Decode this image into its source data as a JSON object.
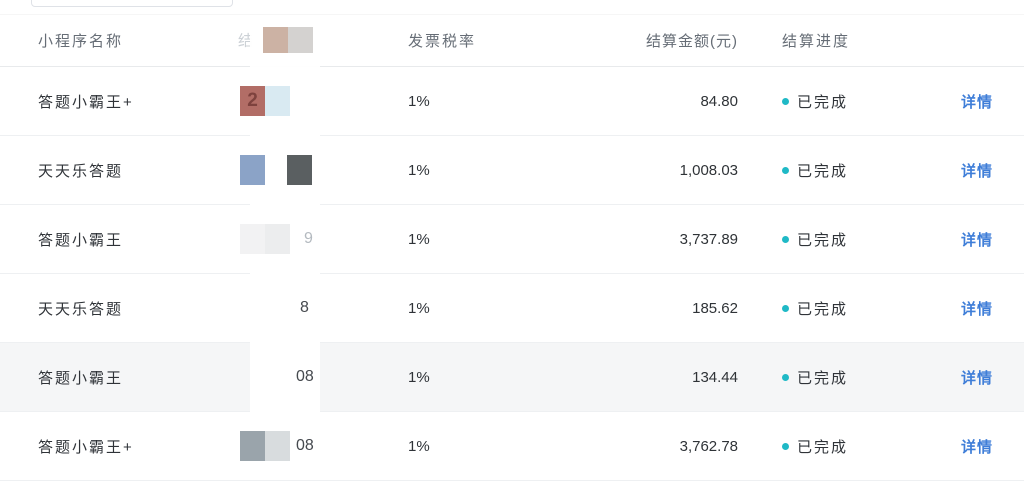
{
  "table": {
    "header": {
      "name": "小程序名称",
      "tax": "发票税率",
      "amount": "结算金额(元)",
      "progress": "结算进度",
      "action": ""
    },
    "header_redaction": {
      "partial_char": "结",
      "blocks": [
        {
          "c": "#ccb2a4",
          "t": ""
        },
        {
          "c": "#d4d2d0",
          "t": ""
        }
      ]
    },
    "rows": [
      {
        "name": "答题小霸王+",
        "tax": "1%",
        "amount": "84.80",
        "status": "已完成",
        "action": "详情",
        "visible_digits": "",
        "redaction_blocks": [
          {
            "c": "#b26d66",
            "t": "2"
          },
          {
            "c": "#d9eaf2",
            "t": ""
          }
        ]
      },
      {
        "name": "天天乐答题",
        "tax": "1%",
        "amount": "1,008.03",
        "status": "已完成",
        "action": "详情",
        "visible_digits": "",
        "redaction_blocks": [
          {
            "c": "#8ba3c7",
            "t": ""
          },
          {
            "c": "#5a5f61",
            "t": ""
          }
        ]
      },
      {
        "name": "答题小霸王",
        "tax": "1%",
        "amount": "3,737.89",
        "status": "已完成",
        "action": "详情",
        "visible_digits": "9",
        "redaction_blocks": [
          {
            "c": "#f2f2f3",
            "t": ""
          },
          {
            "c": "#ecedee",
            "t": ""
          }
        ]
      },
      {
        "name": "天天乐答题",
        "tax": "1%",
        "amount": "185.62",
        "status": "已完成",
        "action": "详情",
        "visible_digits": "8",
        "redaction_blocks": []
      },
      {
        "name": "答题小霸王",
        "tax": "1%",
        "amount": "134.44",
        "status": "已完成",
        "action": "详情",
        "visible_digits": "08",
        "redaction_blocks": []
      },
      {
        "name": "答题小霸王+",
        "tax": "1%",
        "amount": "3,762.78",
        "status": "已完成",
        "action": "详情",
        "visible_digits": "08",
        "redaction_blocks": [
          {
            "c": "#9aa4ab",
            "t": ""
          },
          {
            "c": "#d8dcde",
            "t": ""
          }
        ]
      }
    ]
  },
  "colors": {
    "link_blue": "#3f7ed8",
    "status_dot_teal": "#1fb9c6",
    "header_text": "#666d76",
    "body_text": "#2f3338",
    "row_highlight": "#f5f6f7",
    "separator": "#eef0f2"
  }
}
